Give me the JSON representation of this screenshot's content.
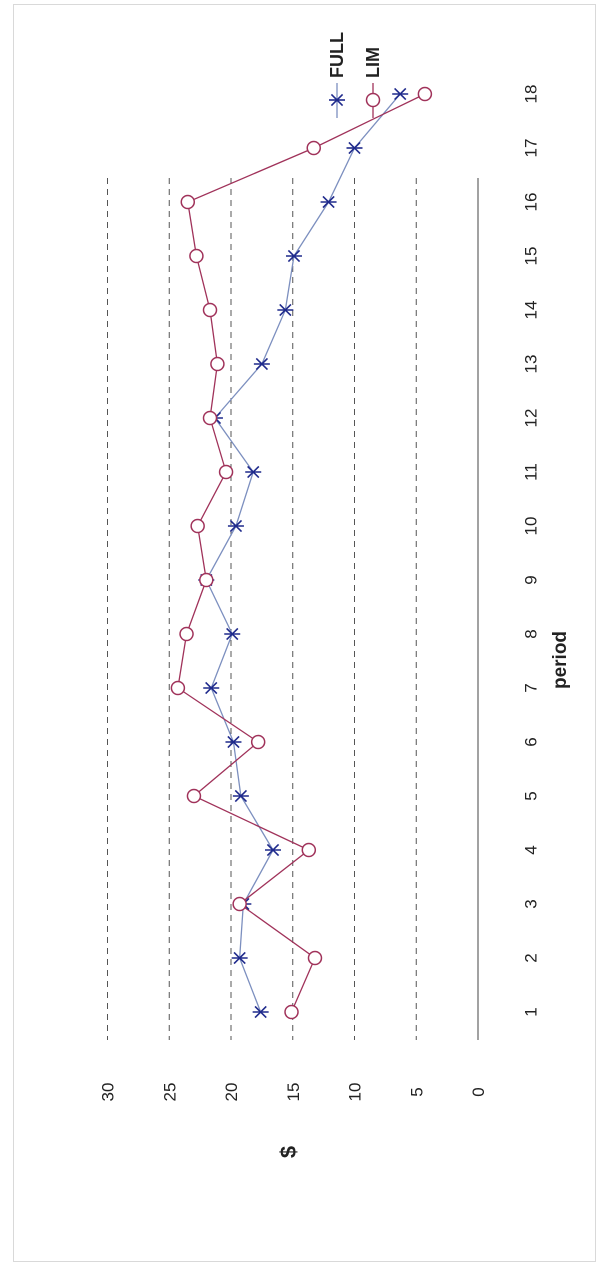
{
  "chart_data": {
    "type": "line",
    "orientation": "rotated-90",
    "xlabel": "period",
    "ylabel": "$",
    "x": [
      1,
      2,
      3,
      4,
      5,
      6,
      7,
      8,
      9,
      10,
      11,
      12,
      13,
      14,
      15,
      16,
      17,
      18
    ],
    "ylim": [
      0,
      30
    ],
    "yticks": [
      0,
      5,
      10,
      15,
      20,
      25,
      30
    ],
    "grid": "dashed horizontal at y ticks",
    "legend_position": "top-right",
    "series": [
      {
        "name": "FULL",
        "marker": "asterisk",
        "color": "#1f2a8c",
        "line_color": "#7c8fbf",
        "values": [
          17.6,
          19.3,
          19.0,
          16.6,
          19.2,
          19.8,
          21.6,
          19.9,
          22.0,
          19.6,
          18.2,
          21.3,
          17.5,
          15.6,
          14.9,
          12.1,
          10.0,
          6.3
        ]
      },
      {
        "name": "LIM",
        "marker": "circle",
        "color": "#a0325a",
        "line_color": "#a0325a",
        "values": [
          15.1,
          13.2,
          19.3,
          13.7,
          23.0,
          17.8,
          24.3,
          23.6,
          22.0,
          22.7,
          20.4,
          21.7,
          21.1,
          21.7,
          22.8,
          23.5,
          13.3,
          4.3
        ]
      }
    ]
  }
}
